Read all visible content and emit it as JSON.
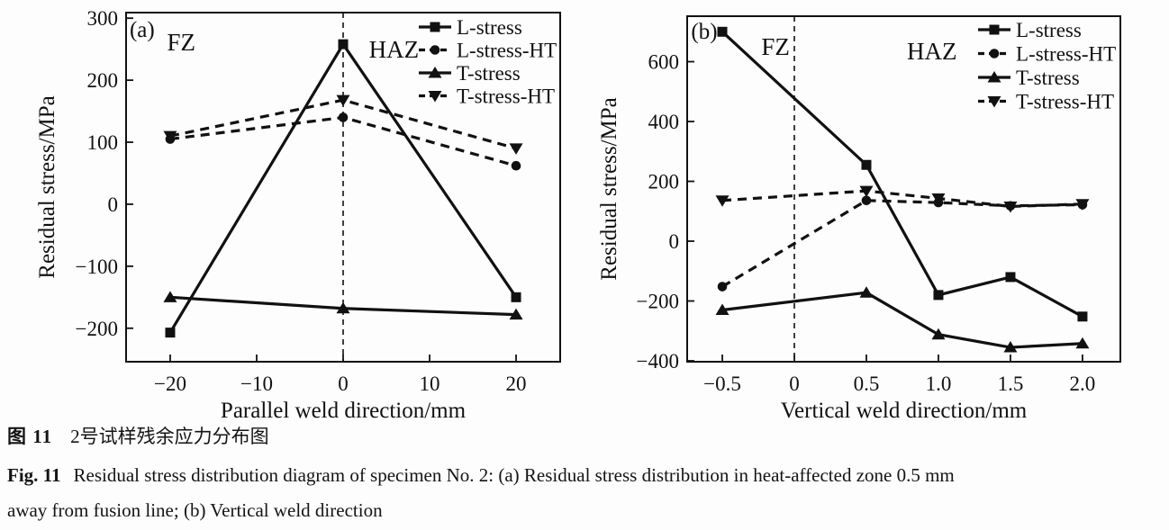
{
  "figure_captions": {
    "zh_label": "图 11",
    "zh_text": "2号试样残余应力分布图",
    "en_label": "Fig. 11",
    "en_line1": "Residual stress distribution diagram of specimen No. 2: (a) Residual stress distribution in heat-affected zone 0.5 mm",
    "en_line2": "away from fusion line; (b) Vertical weld direction"
  },
  "ink_color": "#111111",
  "chart_data": [
    {
      "type": "line",
      "panel_label": "(a)",
      "xlabel": "Parallel weld direction/mm",
      "ylabel": "Residual stress/MPa",
      "x": [
        -20,
        0,
        20
      ],
      "xlim": [
        -25.1,
        25.1
      ],
      "ylim": [
        -254,
        309
      ],
      "xticks": [
        -20,
        -10,
        0,
        10,
        20
      ],
      "xtick_labels": [
        "−20",
        "−10",
        "0",
        "10",
        "20"
      ],
      "yticks": [
        -200,
        -100,
        0,
        100,
        200,
        300
      ],
      "ytick_labels": [
        "−200",
        "−100",
        "0",
        "100",
        "200",
        "300"
      ],
      "grid": false,
      "legend_position": "top-right-inside",
      "vline_x": 0,
      "vline_style": "dashed",
      "panel_pos": {
        "fx": 0.037,
        "fy": 0.046
      },
      "zone_labels": [
        {
          "text": "FZ",
          "fx": 0.127,
          "fy": 0.085
        },
        {
          "text": "HAZ",
          "fx": 0.617,
          "fy": 0.106
        }
      ],
      "series": [
        {
          "name": "L-stress",
          "marker": "square",
          "line": "solid",
          "values": [
            -207,
            258,
            -150
          ]
        },
        {
          "name": "L-stress-HT",
          "marker": "circle",
          "line": "dashed",
          "values": [
            105,
            140,
            62
          ]
        },
        {
          "name": "T-stress",
          "marker": "triangle-up",
          "line": "solid",
          "values": [
            -150,
            -168,
            -178
          ]
        },
        {
          "name": "T-stress-HT",
          "marker": "triangle-down",
          "line": "dashed",
          "values": [
            110,
            168,
            90
          ]
        }
      ]
    },
    {
      "type": "line",
      "panel_label": "(b)",
      "xlabel": "Vertical weld direction/mm",
      "ylabel": "Residual stress/MPa",
      "x": [
        -0.5,
        0.5,
        1.0,
        1.5,
        2.0
      ],
      "xlim": [
        -0.744,
        2.263
      ],
      "ylim": [
        -403,
        752
      ],
      "xticks": [
        -0.5,
        0,
        0.5,
        1.0,
        1.5,
        2.0
      ],
      "xtick_labels": [
        "−0.5",
        "0",
        "0.5",
        "1.0",
        "1.5",
        "2.0"
      ],
      "yticks": [
        -400,
        -200,
        0,
        200,
        400,
        600
      ],
      "ytick_labels": [
        "−400",
        "−200",
        "0",
        "200",
        "400",
        "600"
      ],
      "grid": false,
      "legend_position": "top-right-inside",
      "vline_x": 0,
      "vline_style": "dashed",
      "panel_pos": {
        "fx": 0.0395,
        "fy": 0.0417
      },
      "zone_labels": [
        {
          "text": "FZ",
          "fx": 0.204,
          "fy": 0.089
        },
        {
          "text": "HAZ",
          "fx": 0.565,
          "fy": 0.102
        }
      ],
      "series": [
        {
          "name": "L-stress",
          "marker": "square",
          "line": "solid",
          "values": [
            700,
            255,
            -180,
            -120,
            -252
          ]
        },
        {
          "name": "L-stress-HT",
          "marker": "circle",
          "line": "dashed",
          "values": [
            -152,
            136,
            129,
            118,
            122
          ]
        },
        {
          "name": "T-stress",
          "marker": "triangle-up",
          "line": "solid",
          "values": [
            -230,
            -172,
            -312,
            -355,
            -342
          ]
        },
        {
          "name": "T-stress-HT",
          "marker": "triangle-down",
          "line": "dashed",
          "values": [
            136,
            168,
            143,
            116,
            124
          ]
        }
      ]
    }
  ]
}
